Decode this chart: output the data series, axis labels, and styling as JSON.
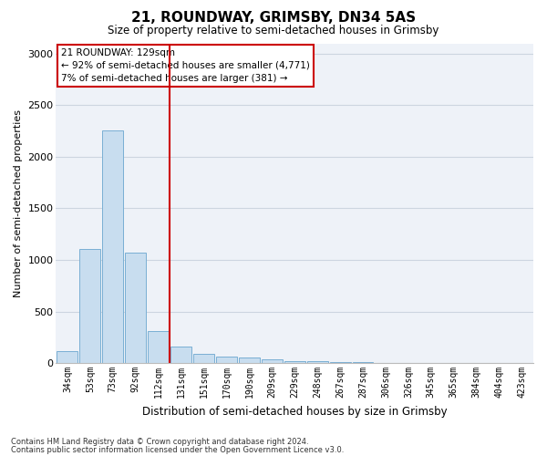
{
  "title": "21, ROUNDWAY, GRIMSBY, DN34 5AS",
  "subtitle": "Size of property relative to semi-detached houses in Grimsby",
  "xlabel": "Distribution of semi-detached houses by size in Grimsby",
  "ylabel": "Number of semi-detached properties",
  "footer1": "Contains HM Land Registry data © Crown copyright and database right 2024.",
  "footer2": "Contains public sector information licensed under the Open Government Licence v3.0.",
  "annotation_line1": "21 ROUNDWAY: 129sqm",
  "annotation_line2": "← 92% of semi-detached houses are smaller (4,771)",
  "annotation_line3": "7% of semi-detached houses are larger (381) →",
  "bar_color": "#c8ddef",
  "bar_edge_color": "#7aafd4",
  "vline_color": "#cc0000",
  "annotation_box_facecolor": "#ffffff",
  "annotation_box_edgecolor": "#cc0000",
  "categories": [
    "34sqm",
    "53sqm",
    "73sqm",
    "92sqm",
    "112sqm",
    "131sqm",
    "151sqm",
    "170sqm",
    "190sqm",
    "209sqm",
    "229sqm",
    "248sqm",
    "267sqm",
    "287sqm",
    "306sqm",
    "326sqm",
    "345sqm",
    "365sqm",
    "384sqm",
    "404sqm",
    "423sqm"
  ],
  "values": [
    120,
    1110,
    2260,
    1070,
    310,
    160,
    90,
    65,
    50,
    35,
    20,
    15,
    12,
    10,
    5,
    3,
    2,
    2,
    1,
    1,
    0
  ],
  "ylim": [
    0,
    3100
  ],
  "yticks": [
    0,
    500,
    1000,
    1500,
    2000,
    2500,
    3000
  ],
  "vline_x_index": 5,
  "grid_color": "#ccd5e0",
  "background_color": "#eef2f8",
  "title_fontsize": 11,
  "subtitle_fontsize": 8.5,
  "ylabel_fontsize": 8,
  "xlabel_fontsize": 8.5,
  "xtick_fontsize": 7,
  "ytick_fontsize": 8,
  "footer_fontsize": 6,
  "annotation_fontsize": 7.5
}
